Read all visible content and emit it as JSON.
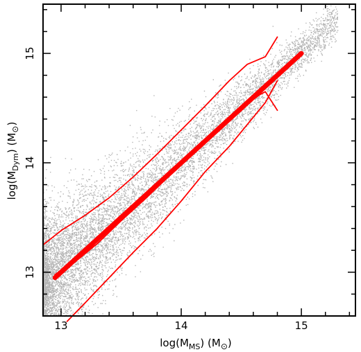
{
  "chart_data": {
    "type": "scatter",
    "title": "",
    "xlabel": {
      "pre": "log(M",
      "sub": "MS",
      "post": ")  (M",
      "sym": "⊙",
      "end": ")"
    },
    "ylabel": {
      "pre": "log(M",
      "sub": "Dym",
      "post": ")  (M",
      "sym": "⊙",
      "end": ")"
    },
    "xlim": [
      12.85,
      15.45
    ],
    "ylim": [
      12.6,
      15.45
    ],
    "xticks": [
      13,
      14,
      15
    ],
    "yticks": [
      13,
      14,
      15
    ],
    "xtick_labels": [
      "13",
      "14",
      "15"
    ],
    "ytick_labels": [
      "13",
      "14",
      "15"
    ],
    "grid": false,
    "legend": "none",
    "scatter_color": "#b4b4b4",
    "line_color": "#ff0000",
    "scatter_description_points": "dense cloud of simulated halos along the one-to-one relation, densest at low mass",
    "series": [
      {
        "style": "thick",
        "x": [
          12.95,
          15.0
        ],
        "y": [
          12.95,
          15.0
        ]
      },
      {
        "style": "median",
        "x": [
          12.95,
          13.1,
          13.3,
          13.5,
          13.7,
          13.9,
          14.1,
          14.3,
          14.5,
          14.65,
          14.7,
          14.8
        ],
        "y": [
          12.98,
          13.08,
          13.26,
          13.47,
          13.67,
          13.88,
          14.09,
          14.3,
          14.5,
          14.62,
          14.65,
          14.48
        ]
      },
      {
        "style": "upper",
        "x": [
          12.85,
          13.0,
          13.2,
          13.4,
          13.6,
          13.8,
          14.0,
          14.2,
          14.4,
          14.55,
          14.7,
          14.8
        ],
        "y": [
          13.25,
          13.38,
          13.52,
          13.68,
          13.87,
          14.08,
          14.3,
          14.52,
          14.75,
          14.9,
          14.97,
          15.15
        ]
      },
      {
        "style": "lower",
        "x": [
          13.05,
          13.2,
          13.4,
          13.6,
          13.8,
          14.0,
          14.2,
          14.4,
          14.55,
          14.7,
          14.8
        ],
        "y": [
          12.55,
          12.72,
          12.95,
          13.18,
          13.4,
          13.65,
          13.92,
          14.15,
          14.35,
          14.55,
          14.75
        ]
      }
    ]
  }
}
